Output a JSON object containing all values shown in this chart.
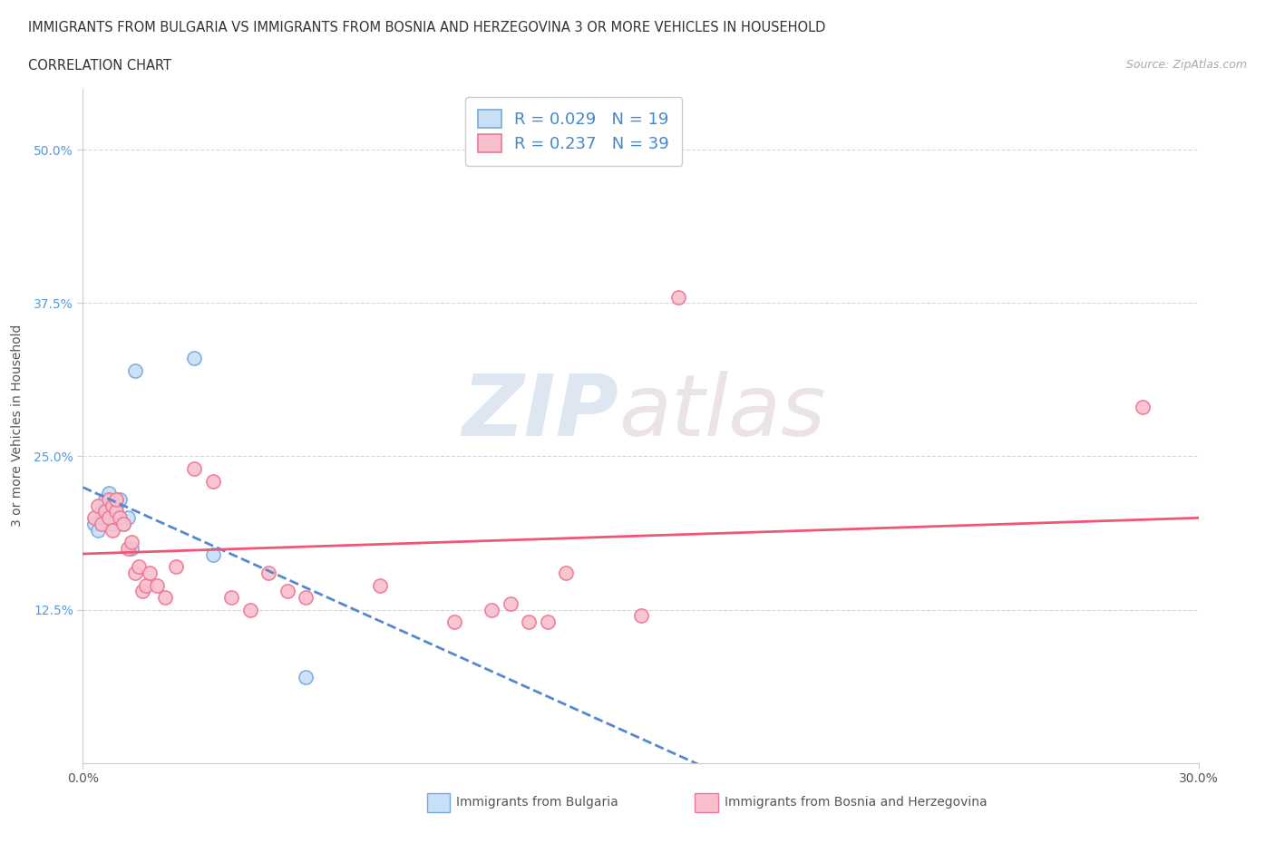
{
  "title_line1": "IMMIGRANTS FROM BULGARIA VS IMMIGRANTS FROM BOSNIA AND HERZEGOVINA 3 OR MORE VEHICLES IN HOUSEHOLD",
  "title_line2": "CORRELATION CHART",
  "source_text": "Source: ZipAtlas.com",
  "ylabel": "3 or more Vehicles in Household",
  "xlim": [
    0.0,
    0.3
  ],
  "ylim": [
    0.0,
    0.55
  ],
  "ytick_labels": [
    "12.5%",
    "25.0%",
    "37.5%",
    "50.0%"
  ],
  "ytick_values": [
    0.125,
    0.25,
    0.375,
    0.5
  ],
  "watermark_zip": "ZIP",
  "watermark_atlas": "atlas",
  "bulgaria_R": 0.029,
  "bulgaria_N": 19,
  "bosnia_R": 0.237,
  "bosnia_N": 39,
  "bulgaria_color": "#c8dff8",
  "bosnia_color": "#f8c0cc",
  "bulgaria_edge_color": "#7aaadd",
  "bosnia_edge_color": "#ee7799",
  "bulgaria_line_color": "#5588cc",
  "bosnia_line_color": "#ee5577",
  "bulgaria_x": [
    0.003,
    0.004,
    0.005,
    0.006,
    0.006,
    0.007,
    0.007,
    0.008,
    0.008,
    0.009,
    0.009,
    0.01,
    0.011,
    0.012,
    0.013,
    0.014,
    0.03,
    0.035,
    0.06
  ],
  "bulgaria_y": [
    0.195,
    0.19,
    0.205,
    0.215,
    0.2,
    0.21,
    0.22,
    0.195,
    0.205,
    0.2,
    0.21,
    0.215,
    0.195,
    0.2,
    0.175,
    0.32,
    0.33,
    0.17,
    0.07
  ],
  "bosnia_x": [
    0.003,
    0.004,
    0.005,
    0.006,
    0.007,
    0.007,
    0.008,
    0.008,
    0.009,
    0.009,
    0.01,
    0.011,
    0.012,
    0.013,
    0.014,
    0.015,
    0.016,
    0.017,
    0.018,
    0.02,
    0.022,
    0.025,
    0.03,
    0.035,
    0.04,
    0.045,
    0.05,
    0.055,
    0.06,
    0.08,
    0.1,
    0.11,
    0.115,
    0.12,
    0.125,
    0.13,
    0.15,
    0.16,
    0.285
  ],
  "bosnia_y": [
    0.2,
    0.21,
    0.195,
    0.205,
    0.215,
    0.2,
    0.19,
    0.21,
    0.205,
    0.215,
    0.2,
    0.195,
    0.175,
    0.18,
    0.155,
    0.16,
    0.14,
    0.145,
    0.155,
    0.145,
    0.135,
    0.16,
    0.24,
    0.23,
    0.135,
    0.125,
    0.155,
    0.14,
    0.135,
    0.145,
    0.115,
    0.125,
    0.13,
    0.115,
    0.115,
    0.155,
    0.12,
    0.38,
    0.29
  ],
  "bg_color": "#ffffff",
  "grid_color": "#d8d8d8"
}
